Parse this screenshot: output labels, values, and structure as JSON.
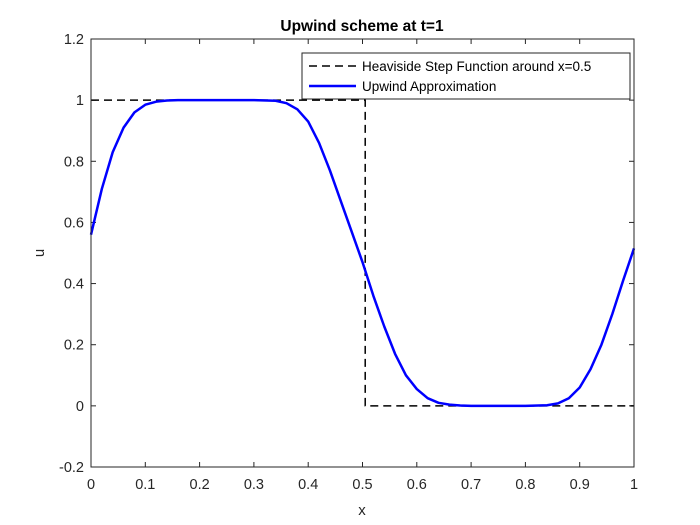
{
  "chart_data": {
    "type": "line",
    "title": "Upwind scheme at t=1",
    "xlabel": "x",
    "ylabel": "u",
    "xlim": [
      0,
      1
    ],
    "ylim": [
      -0.2,
      1.2
    ],
    "xticks": [
      0,
      0.1,
      0.2,
      0.3,
      0.4,
      0.5,
      0.6,
      0.7,
      0.8,
      0.9,
      1
    ],
    "xtick_labels": [
      "0",
      "0.1",
      "0.2",
      "0.3",
      "0.4",
      "0.5",
      "0.6",
      "0.7",
      "0.8",
      "0.9",
      "1"
    ],
    "yticks": [
      -0.2,
      0,
      0.2,
      0.4,
      0.6,
      0.8,
      1,
      1.2
    ],
    "ytick_labels": [
      "-0.2",
      "0",
      "0.2",
      "0.4",
      "0.6",
      "0.8",
      "1",
      "1.2"
    ],
    "grid": false,
    "legend_position": "top-right",
    "series": [
      {
        "name": "Heaviside Step Function around x=0.5",
        "color": "#000000",
        "style": "dashed",
        "x": [
          0,
          0.505,
          0.505,
          1
        ],
        "y": [
          1,
          1,
          0,
          0
        ]
      },
      {
        "name": "Upwind Approximation",
        "color": "#0000ff",
        "style": "solid",
        "x": [
          0,
          0.02,
          0.04,
          0.06,
          0.08,
          0.1,
          0.12,
          0.14,
          0.16,
          0.2,
          0.25,
          0.3,
          0.34,
          0.36,
          0.38,
          0.4,
          0.42,
          0.44,
          0.46,
          0.48,
          0.5,
          0.52,
          0.54,
          0.56,
          0.58,
          0.6,
          0.62,
          0.64,
          0.66,
          0.68,
          0.7,
          0.75,
          0.8,
          0.84,
          0.86,
          0.88,
          0.9,
          0.92,
          0.94,
          0.96,
          0.98,
          1
        ],
        "y": [
          0.56,
          0.71,
          0.83,
          0.91,
          0.96,
          0.985,
          0.995,
          0.999,
          1,
          1,
          1,
          1,
          0.998,
          0.99,
          0.97,
          0.93,
          0.86,
          0.77,
          0.67,
          0.57,
          0.47,
          0.36,
          0.26,
          0.17,
          0.1,
          0.055,
          0.025,
          0.01,
          0.004,
          0.001,
          0,
          0,
          0,
          0.002,
          0.008,
          0.025,
          0.06,
          0.12,
          0.2,
          0.3,
          0.41,
          0.515
        ]
      }
    ]
  }
}
